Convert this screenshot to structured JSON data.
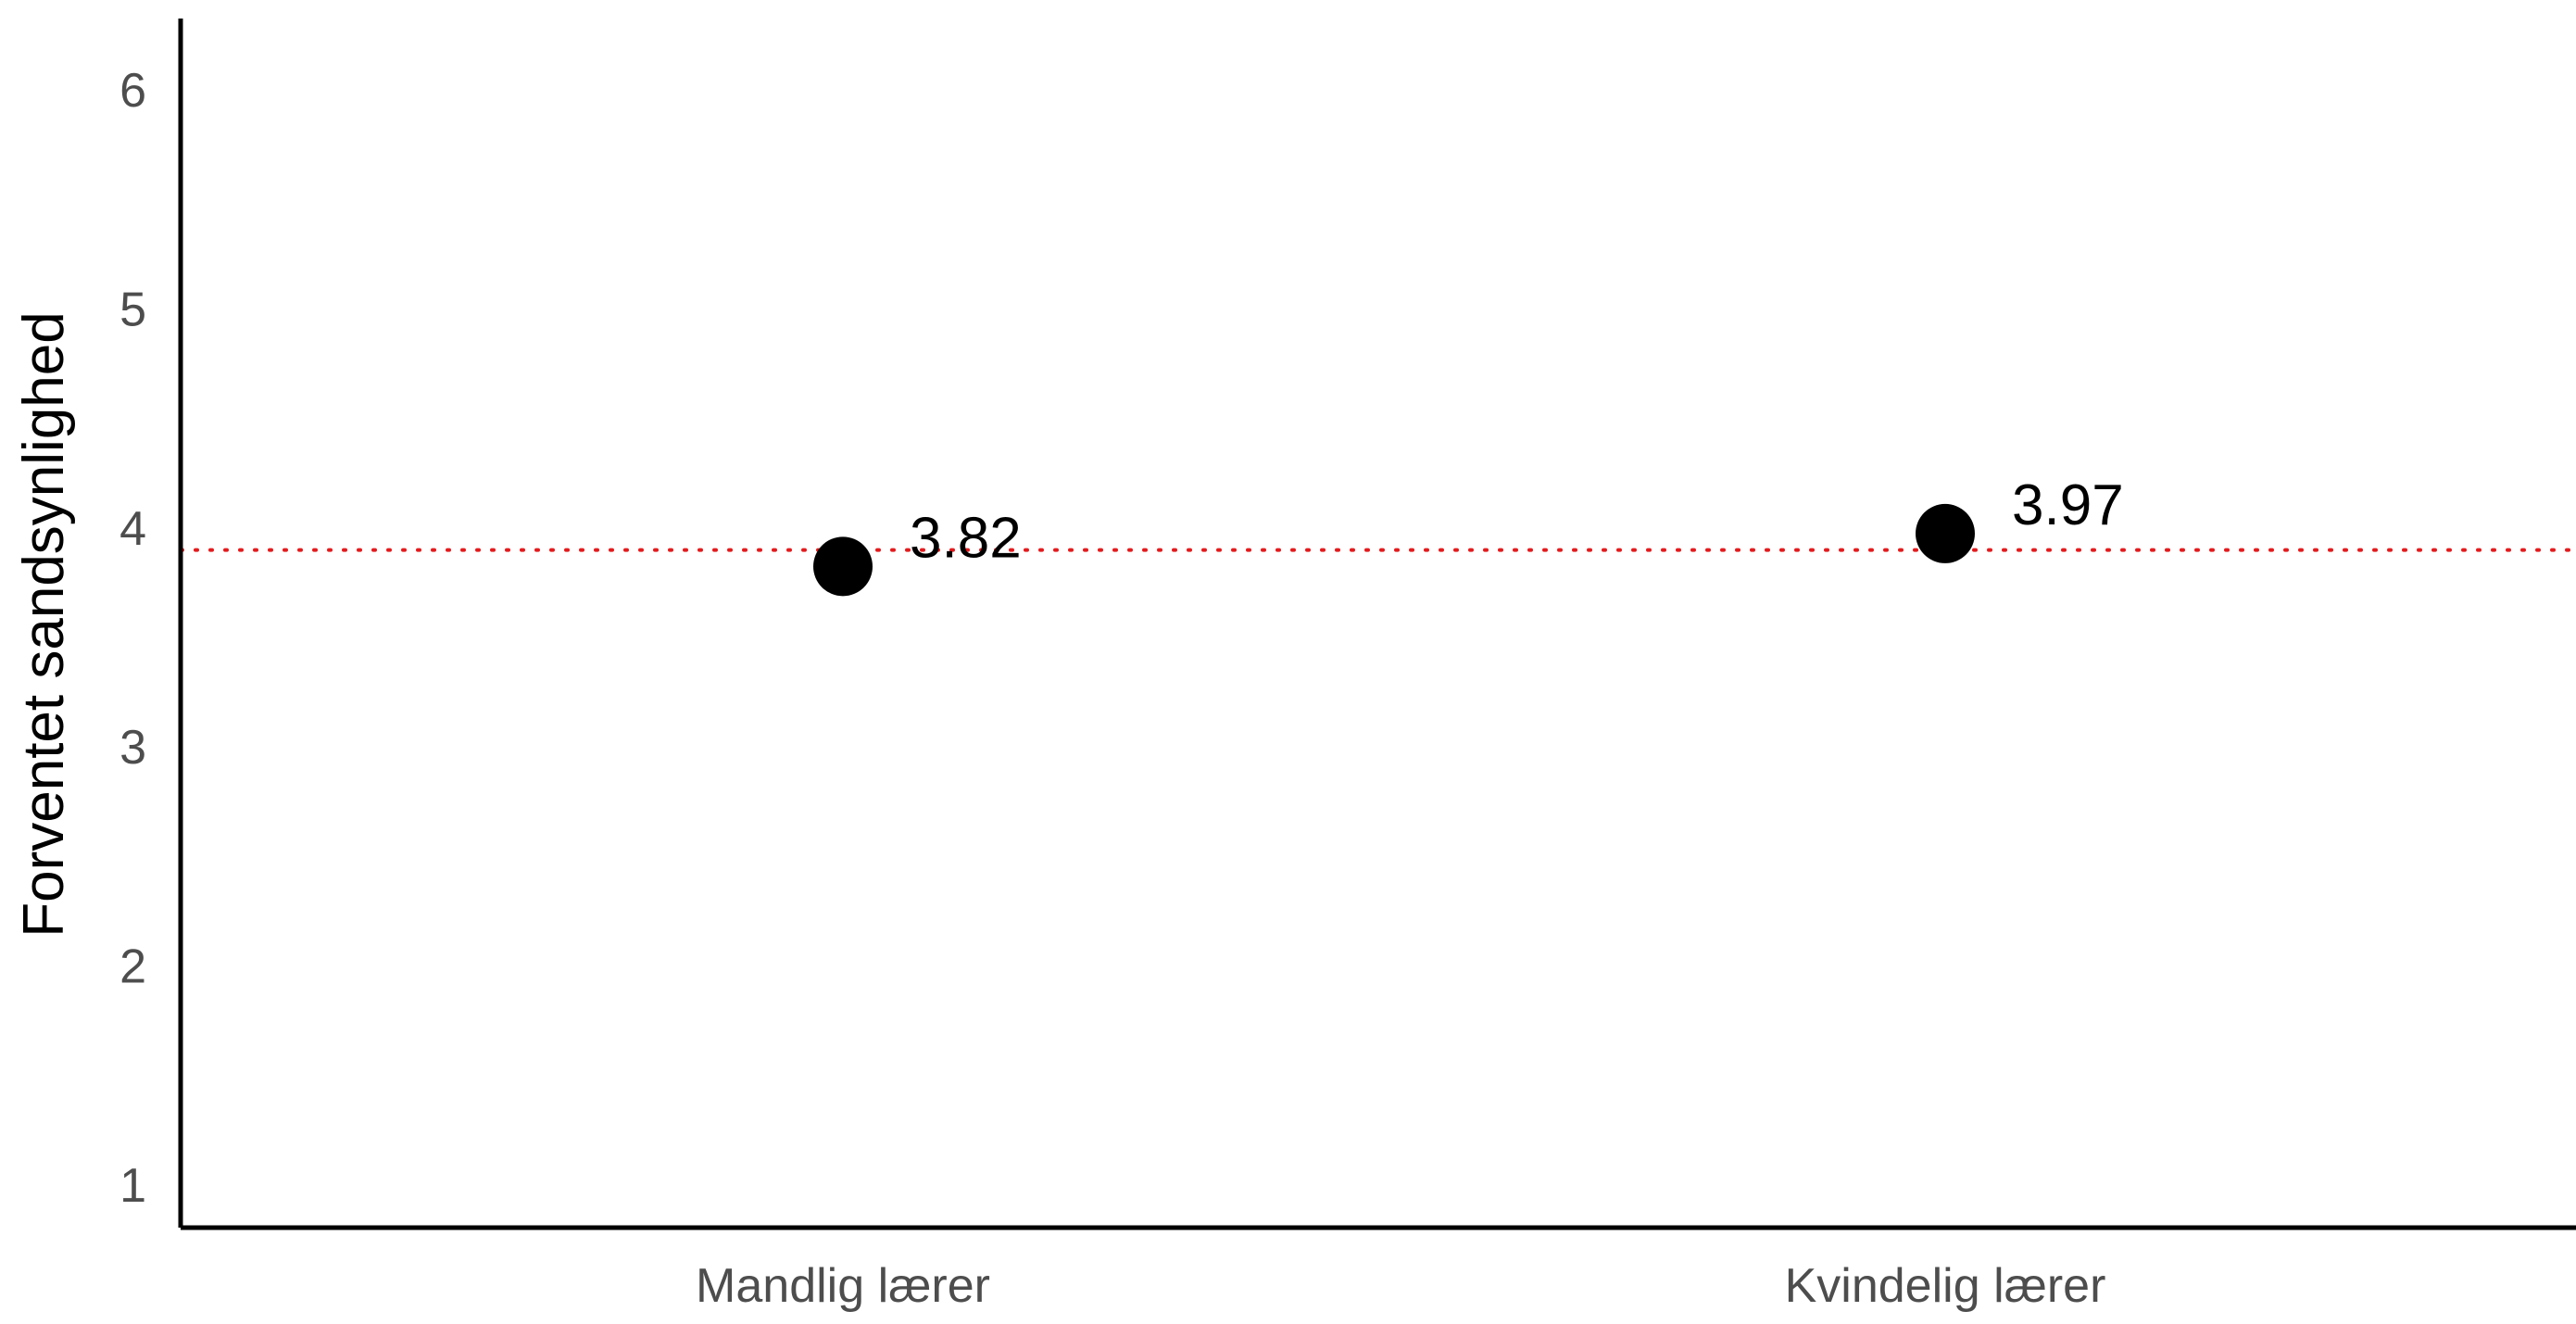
{
  "chart_data": {
    "type": "scatter",
    "categories": [
      "Mandlig lærer",
      "Kvindelig lærer"
    ],
    "values": [
      3.82,
      3.97
    ],
    "data_labels": [
      "3.82",
      "3.97"
    ],
    "title": "",
    "xlabel": "",
    "ylabel": "Forventet sandsynlighed",
    "ylim": [
      0.8,
      6.2
    ],
    "y_ticks": [
      "1",
      "2",
      "3",
      "4",
      "5",
      "6"
    ],
    "reference_line": {
      "value": 3.895,
      "style": "dotted",
      "color": "#e41a1c"
    },
    "point_color": "#000000",
    "grid": false,
    "legend": "none"
  }
}
